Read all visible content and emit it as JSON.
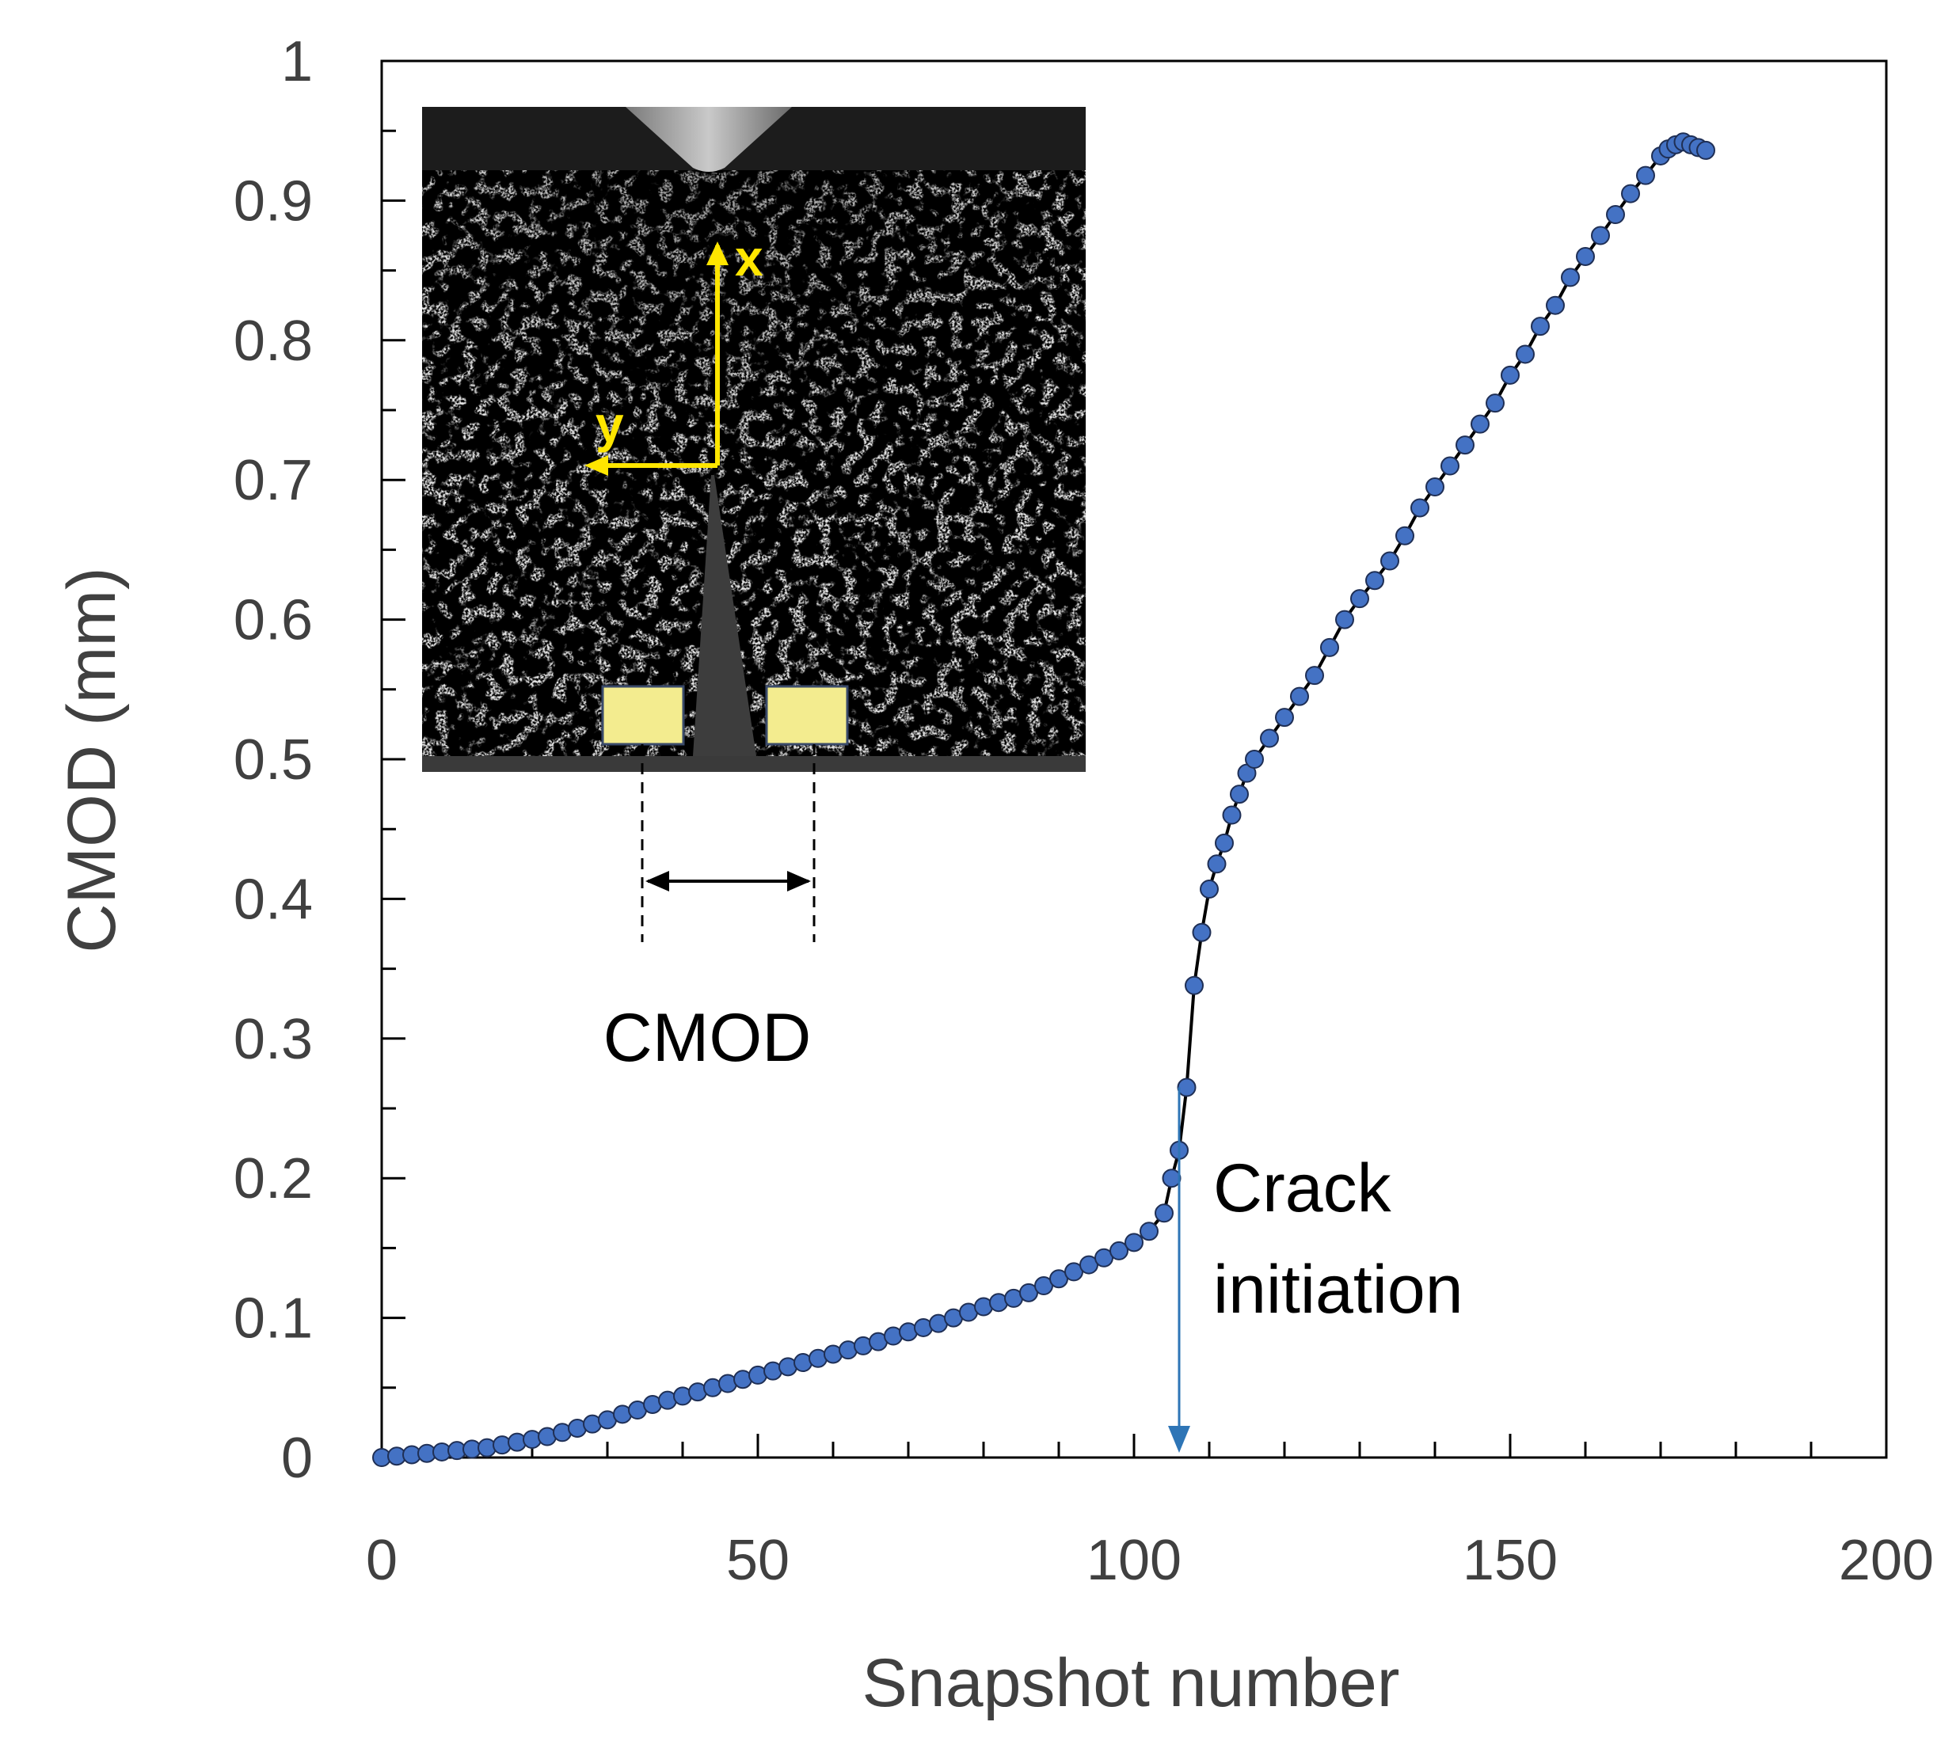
{
  "chart_data": {
    "type": "scatter",
    "xlabel": "Snapshot number",
    "ylabel": "CMOD (mm)",
    "xlim": [
      0,
      200
    ],
    "ylim": [
      0,
      1
    ],
    "x_ticks": [
      "0",
      "50",
      "100",
      "150",
      "200"
    ],
    "y_ticks": [
      "0",
      "0.1",
      "0.2",
      "0.3",
      "0.4",
      "0.5",
      "0.6",
      "0.7",
      "0.8",
      "0.9",
      "1"
    ],
    "grid": false,
    "marker_color": "#4472C4",
    "line_color": "#000000",
    "annotation": {
      "line1": "Crack",
      "line2": "initiation",
      "x": 106,
      "arrow_color": "#2E75B6"
    },
    "inset": {
      "axis_x_label": "x",
      "axis_y_label": "y",
      "cmod_label": "CMOD",
      "axis_color": "#FFE600",
      "gauge_color": "#F3EC8F"
    },
    "series": [
      {
        "x": [
          0,
          2,
          4,
          6,
          8,
          10,
          12,
          14,
          16,
          18,
          20,
          22,
          24,
          26,
          28,
          30,
          32,
          34,
          36,
          38,
          40,
          42,
          44,
          46,
          48,
          50,
          52,
          54,
          56,
          58,
          60,
          62,
          64,
          66,
          68,
          70,
          72,
          74,
          76,
          78,
          80,
          82,
          84,
          86,
          88,
          90,
          92,
          94,
          96,
          98,
          100,
          102,
          104,
          105,
          106,
          107,
          108,
          109,
          110,
          111,
          112,
          113,
          114,
          115,
          116,
          118,
          120,
          122,
          124,
          126,
          128,
          130,
          132,
          134,
          136,
          138,
          140,
          142,
          144,
          146,
          148,
          150,
          152,
          154,
          156,
          158,
          160,
          162,
          164,
          166,
          168,
          170,
          171,
          172,
          173,
          174,
          175,
          176
        ],
        "y": [
          0,
          0.001,
          0.002,
          0.003,
          0.004,
          0.005,
          0.006,
          0.007,
          0.009,
          0.011,
          0.013,
          0.015,
          0.018,
          0.021,
          0.024,
          0.027,
          0.031,
          0.034,
          0.038,
          0.041,
          0.044,
          0.047,
          0.05,
          0.053,
          0.056,
          0.059,
          0.062,
          0.065,
          0.068,
          0.071,
          0.074,
          0.077,
          0.08,
          0.083,
          0.087,
          0.09,
          0.093,
          0.096,
          0.1,
          0.104,
          0.108,
          0.111,
          0.114,
          0.118,
          0.123,
          0.128,
          0.133,
          0.138,
          0.143,
          0.148,
          0.154,
          0.162,
          0.175,
          0.2,
          0.22,
          0.265,
          0.338,
          0.376,
          0.407,
          0.425,
          0.44,
          0.46,
          0.475,
          0.49,
          0.5,
          0.515,
          0.53,
          0.545,
          0.56,
          0.58,
          0.6,
          0.615,
          0.628,
          0.642,
          0.66,
          0.68,
          0.695,
          0.71,
          0.725,
          0.74,
          0.755,
          0.775,
          0.79,
          0.81,
          0.825,
          0.845,
          0.86,
          0.875,
          0.89,
          0.905,
          0.918,
          0.932,
          0.937,
          0.94,
          0.942,
          0.94,
          0.938,
          0.936
        ]
      }
    ]
  }
}
